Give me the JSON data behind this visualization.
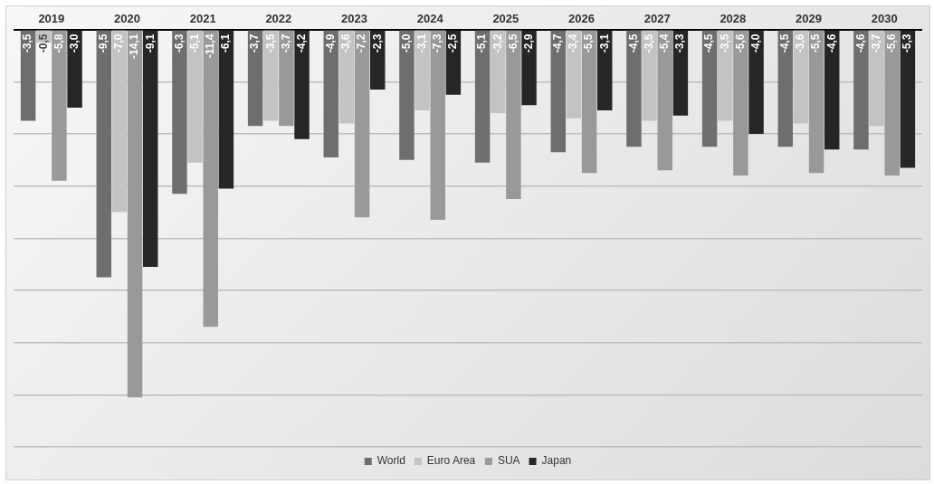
{
  "chart_data": {
    "type": "bar",
    "categories": [
      "2019",
      "2020",
      "2021",
      "2022",
      "2023",
      "2024",
      "2025",
      "2026",
      "2027",
      "2028",
      "2029",
      "2030"
    ],
    "series": [
      {
        "name": "World",
        "color": "#6e6e6e",
        "values": [
          -3.5,
          -9.5,
          -6.3,
          -3.7,
          -4.9,
          -5.0,
          -5.1,
          -4.7,
          -4.5,
          -4.5,
          -4.5,
          -4.6
        ],
        "value_labels": [
          "-3,5",
          "-9,5",
          "-6,3",
          "-3,7",
          "-4,9",
          "-5,0",
          "-5,1",
          "-4,7",
          "-4,5",
          "-4,5",
          "-4,5",
          "-4,6"
        ]
      },
      {
        "name": "Euro Area",
        "color": "#c3c3c3",
        "values": [
          -0.5,
          -7.0,
          -5.1,
          -3.5,
          -3.6,
          -3.1,
          -3.2,
          -3.4,
          -3.5,
          -3.5,
          -3.6,
          -3.7
        ],
        "value_labels": [
          "-0,5",
          "-7,0",
          "-5,1",
          "-3,5",
          "-3,6",
          "-3,1",
          "-3,2",
          "-3,4",
          "-3,5",
          "-3,5",
          "-3,6",
          "-3,7"
        ]
      },
      {
        "name": "SUA",
        "color": "#999999",
        "values": [
          -5.8,
          -14.1,
          -11.4,
          -3.7,
          -7.2,
          -7.3,
          -6.5,
          -5.5,
          -5.4,
          -5.6,
          -5.5,
          -5.6
        ],
        "value_labels": [
          "-5,8",
          "-14,1",
          "-11,4",
          "-3,7",
          "-7,2",
          "-7,3",
          "-6,5",
          "-5,5",
          "-5,4",
          "-5,6",
          "-5,5",
          "-5,6"
        ]
      },
      {
        "name": "Japan",
        "color": "#262626",
        "values": [
          -3.0,
          -9.1,
          -6.1,
          -4.2,
          -2.3,
          -2.5,
          -2.9,
          -3.1,
          -3.3,
          -4.0,
          -4.6,
          -5.3
        ],
        "value_labels": [
          "-3,0",
          "-9,1",
          "-6,1",
          "-4,2",
          "-2,3",
          "-2,5",
          "-2,9",
          "-3,1",
          "-3,3",
          "-4,0",
          "-4,6",
          "-5,3"
        ]
      }
    ],
    "ylim": [
      -16,
      0
    ],
    "yticks": [
      {
        "value": 0,
        "label": null
      },
      {
        "value": -2,
        "label": null
      },
      {
        "value": -4,
        "label": null
      },
      {
        "value": -6,
        "label": null
      },
      {
        "value": -8,
        "label": null
      },
      {
        "value": -10,
        "label": null
      },
      {
        "value": -12,
        "label": null
      },
      {
        "value": -14,
        "label": null
      },
      {
        "value": -16,
        "label": null
      }
    ],
    "grid": "y",
    "legend": "bottom",
    "tick_labels": "x"
  }
}
